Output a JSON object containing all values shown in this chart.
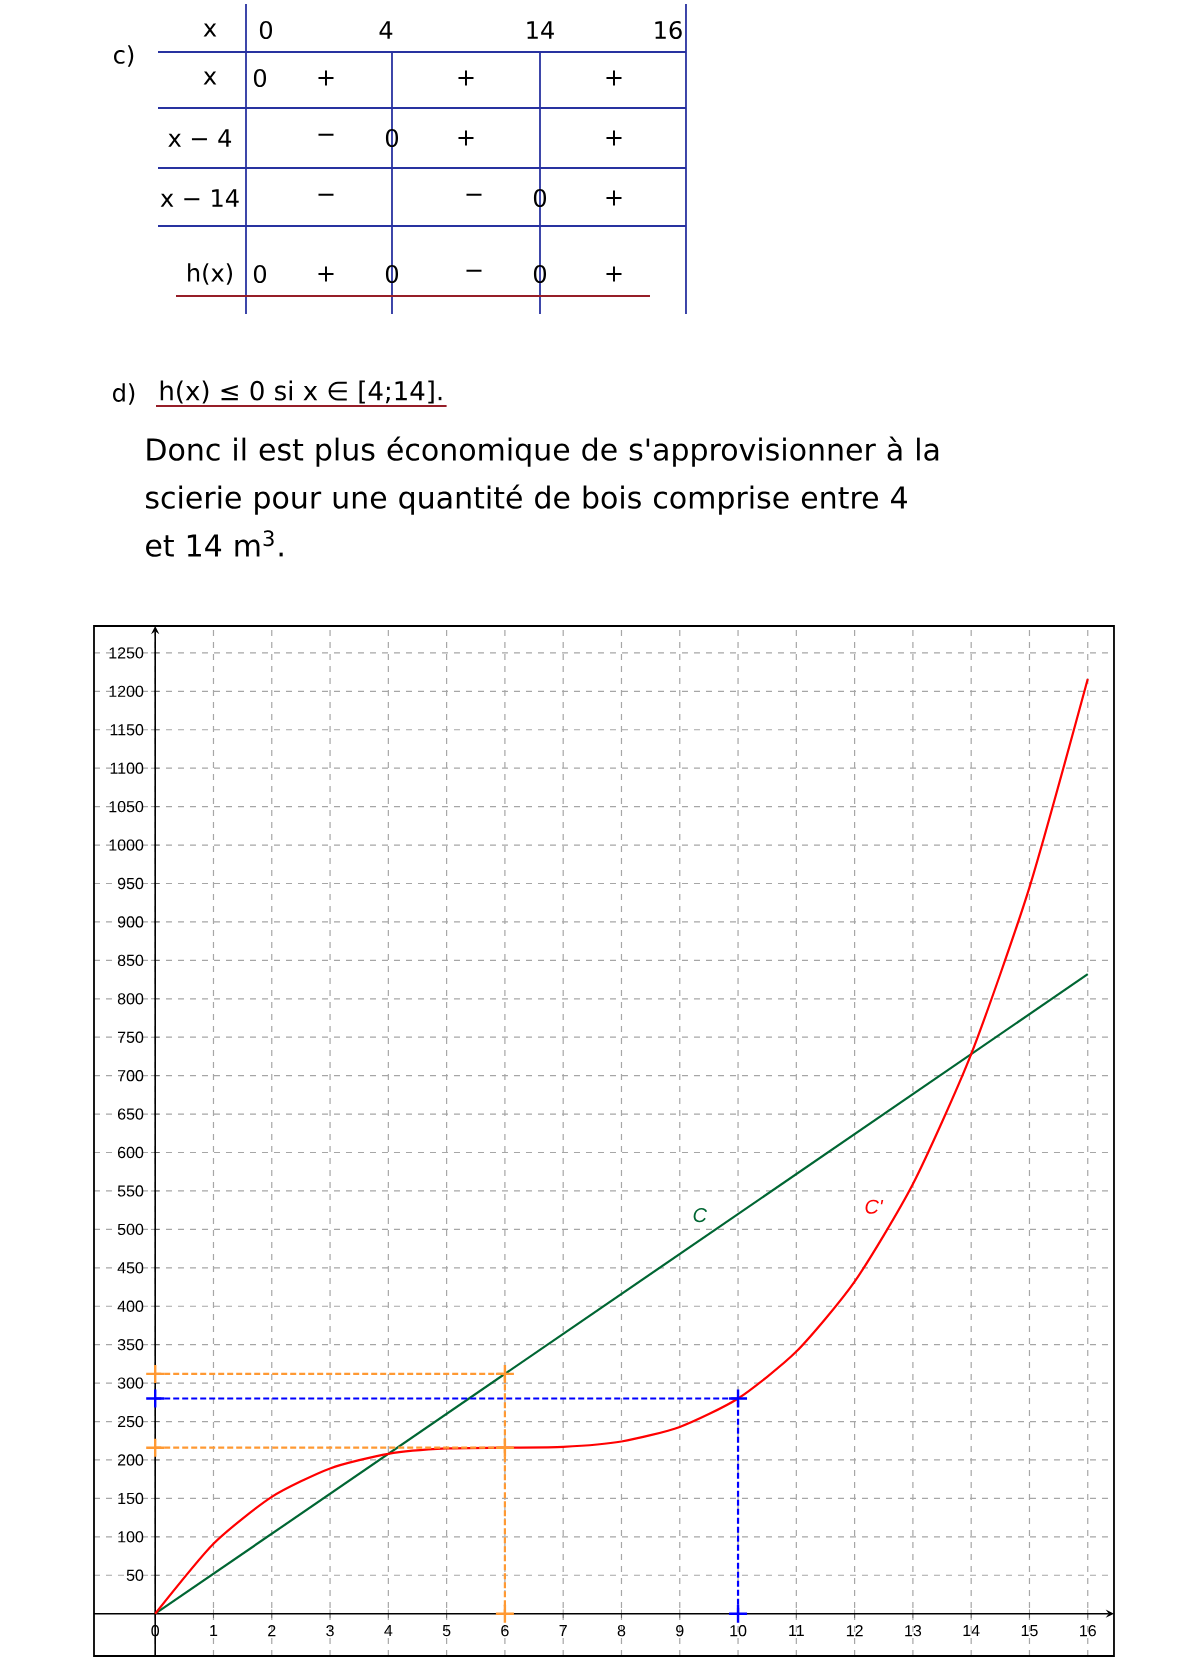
{
  "chart_data": {
    "type": "line",
    "annotations": [
      "c)",
      "x",
      "0",
      "4",
      "14",
      "16",
      "x",
      "0",
      "+",
      "+",
      "+",
      "x − 4",
      "−",
      "0",
      "+",
      "+",
      "x − 14",
      "−",
      "−",
      "0",
      "+",
      "h(x)",
      "0",
      "+",
      "0",
      "−",
      "0",
      "+",
      "d)",
      "h(x) ≤ 0 si x ∈ [4;14].",
      "Donc il est plus économique de s'approvisionner à la scierie pour une quantité de bois comprise entre 4 et 14 m$^{3}$."
    ],
    "xlim": [
      -1.05,
      16.45
    ],
    "ylim": [
      -55,
      1285
    ],
    "xticks": [
      0,
      1,
      2,
      3,
      4,
      5,
      6,
      7,
      8,
      9,
      10,
      11,
      12,
      13,
      14,
      15,
      16
    ],
    "yticks": [
      50,
      100,
      150,
      200,
      250,
      300,
      350,
      400,
      450,
      500,
      550,
      600,
      650,
      700,
      750,
      800,
      850,
      900,
      950,
      1000,
      1050,
      1100,
      1150,
      1200,
      1250
    ],
    "grid": true,
    "series": [
      {
        "name": "C",
        "color": "#006633",
        "x": [
          0,
          16
        ],
        "values": [
          0,
          832
        ]
      },
      {
        "name": "C'",
        "color": "#ff0000",
        "x": [
          0,
          1,
          2,
          3,
          4,
          5,
          6,
          7,
          8,
          9,
          10,
          11,
          12,
          13,
          14,
          15,
          16
        ],
        "values": [
          0,
          91,
          152,
          189,
          208,
          215,
          216,
          217,
          224,
          243,
          280,
          341,
          432,
          559,
          728,
          945,
          1216
        ]
      },
      {
        "color": "#ff9933",
        "line_style": "dashed",
        "marker": "cross",
        "x": [
          0,
          6,
          6
        ],
        "values": [
          312,
          312,
          0
        ]
      },
      {
        "color": "#ff9933",
        "line_style": "dashed",
        "marker": "cross",
        "x": [
          0,
          6
        ],
        "values": [
          216,
          216
        ]
      },
      {
        "color": "#0000ff",
        "line_style": "dashed",
        "marker": "cross",
        "x": [
          0,
          10,
          10
        ],
        "values": [
          280,
          280,
          0
        ]
      }
    ]
  }
}
